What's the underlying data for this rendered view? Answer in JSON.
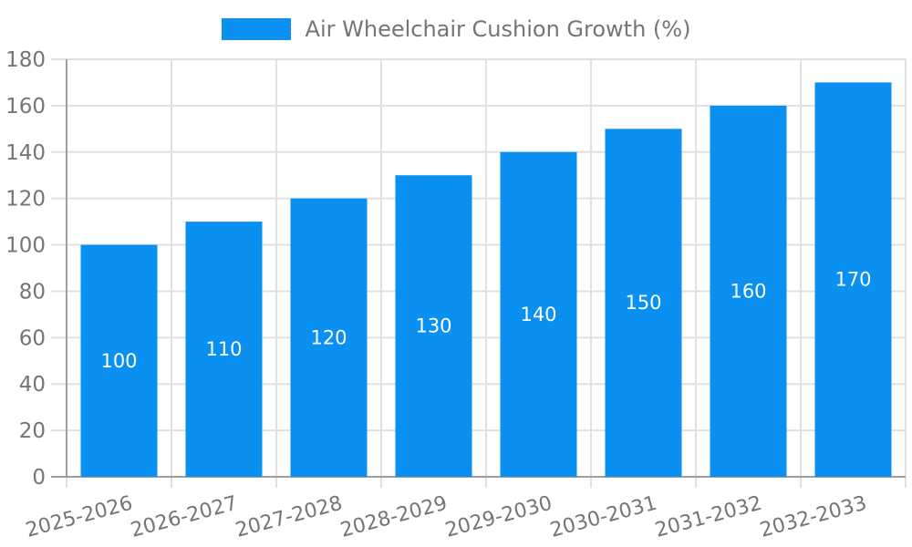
{
  "chart_data": {
    "type": "bar",
    "title": "Air Wheelchair Cushion Growth (%)",
    "legend": "Air Wheelchair Cushion Growth (%)",
    "legend_position": "top-center",
    "categories": [
      "2025-2026",
      "2026-2027",
      "2027-2028",
      "2028-2029",
      "2029-2030",
      "2030-2031",
      "2031-2032",
      "2032-2033"
    ],
    "values": [
      100,
      110,
      120,
      130,
      140,
      150,
      160,
      170
    ],
    "bar_value_labels": [
      "100",
      "110",
      "120",
      "130",
      "140",
      "150",
      "160",
      "170"
    ],
    "xlabel": "",
    "ylabel": "",
    "ylim": [
      0,
      180
    ],
    "ytick_step": 20,
    "y_ticks": [
      0,
      20,
      40,
      60,
      80,
      100,
      120,
      140,
      160,
      180
    ],
    "grid": true,
    "colors": {
      "bar": "#0a90f0",
      "grid": "#e0e0e0",
      "axis": "#9e9e9e",
      "tick_text": "#757575",
      "bar_label": "#ffffff",
      "background": "#ffffff"
    }
  }
}
